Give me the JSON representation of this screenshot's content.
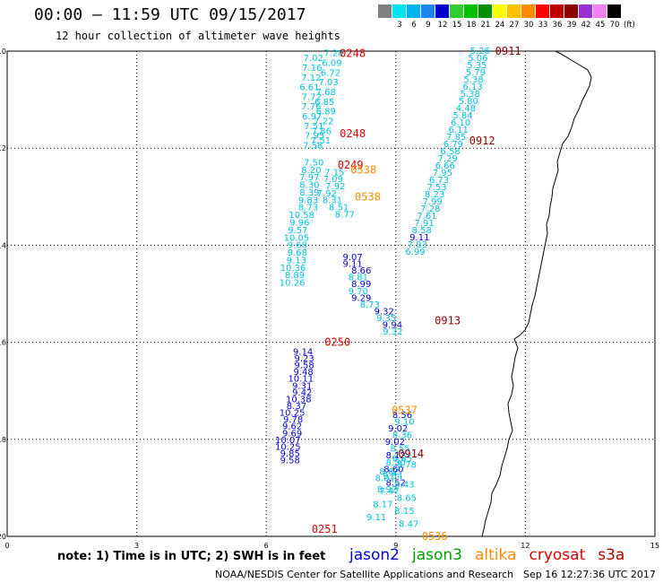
{
  "header": {
    "title": "00:00 – 11:59 UTC 09/15/2017",
    "subtitle": "12 hour collection of altimeter wave heights"
  },
  "colorbar": {
    "unit": "(ft)",
    "steps": [
      {
        "label": "",
        "color": "#808080"
      },
      {
        "label": "3",
        "color": "#00e5ee"
      },
      {
        "label": "6",
        "color": "#00b2ee"
      },
      {
        "label": "9",
        "color": "#1c86ee"
      },
      {
        "label": "12",
        "color": "#0000cd"
      },
      {
        "label": "15",
        "color": "#32cd32"
      },
      {
        "label": "18",
        "color": "#00c000"
      },
      {
        "label": "21",
        "color": "#009000"
      },
      {
        "label": "24",
        "color": "#ffff00"
      },
      {
        "label": "27",
        "color": "#ffc000"
      },
      {
        "label": "30",
        "color": "#ff8c00"
      },
      {
        "label": "33",
        "color": "#ff0000"
      },
      {
        "label": "36",
        "color": "#c00000"
      },
      {
        "label": "39",
        "color": "#8b0000"
      },
      {
        "label": "42",
        "color": "#9a30d0"
      },
      {
        "label": "45",
        "color": "#ee82ee"
      },
      {
        "label": "70",
        "color": "#000000"
      }
    ]
  },
  "map": {
    "lat_ticks": [
      "-10",
      "-12",
      "-14",
      "-16",
      "-18",
      "-20"
    ],
    "lon_ticks": [
      "0",
      "3",
      "6",
      "9",
      "12",
      "15"
    ]
  },
  "footer": {
    "note": "note: 1) Time is in UTC; 2) SWH is in feet",
    "credit": "NOAA/NESDIS Center for Satellite Applications and Research",
    "stamp": "Sep 16 12:27:36 UTC 2017"
  },
  "legend": [
    {
      "name": "jason2",
      "color": "#0000cd"
    },
    {
      "name": "jason3",
      "color": "#00a000"
    },
    {
      "name": "altika",
      "color": "#ff8c00"
    },
    {
      "name": "cryosat",
      "color": "#e00000"
    },
    {
      "name": "s3a",
      "color": "#b00000"
    }
  ],
  "colors": {
    "cyan": "#00c0e0",
    "blue": "#0000cd",
    "time_red": "#e00000",
    "time_dark": "#8b0000",
    "time_orange": "#ff8c00"
  },
  "chart_data": {
    "type": "map",
    "region": {
      "lon_range": [
        0,
        15
      ],
      "lat_range": [
        -20,
        -10
      ]
    },
    "grid": "dotted",
    "time_labels": [
      {
        "text": "0248",
        "lon": 8.0,
        "lat": -10.05,
        "color": "#e00000"
      },
      {
        "text": "0248",
        "lon": 8.0,
        "lat": -11.7,
        "color": "#e00000"
      },
      {
        "text": "0249",
        "lon": 7.95,
        "lat": -12.35,
        "color": "#e00000"
      },
      {
        "text": "0538",
        "lon": 8.25,
        "lat": -12.45,
        "color": "#ff8c00"
      },
      {
        "text": "0538",
        "lon": 8.35,
        "lat": -13.0,
        "color": "#ff8c00"
      },
      {
        "text": "0250",
        "lon": 7.65,
        "lat": -16.0,
        "color": "#e00000"
      },
      {
        "text": "0537",
        "lon": 9.2,
        "lat": -17.4,
        "color": "#ff8c00"
      },
      {
        "text": "0251",
        "lon": 7.35,
        "lat": -19.85,
        "color": "#e00000"
      },
      {
        "text": "0536",
        "lon": 9.9,
        "lat": -20.0,
        "color": "#ff8c00"
      },
      {
        "text": "0911",
        "lon": 11.6,
        "lat": -10.0,
        "color": "#8b0000"
      },
      {
        "text": "0912",
        "lon": 11.0,
        "lat": -11.85,
        "color": "#8b0000"
      },
      {
        "text": "0913",
        "lon": 10.2,
        "lat": -15.55,
        "color": "#8b0000"
      },
      {
        "text": "0914",
        "lon": 9.35,
        "lat": -18.3,
        "color": "#8b0000"
      }
    ],
    "tracks": [
      {
        "name": "track-0248",
        "color": "cyan",
        "lat_start": -10.05,
        "lat_step": 0.1,
        "points": [
          {
            "v": "7.28",
            "lon": 7.56
          },
          {
            "v": "7.02",
            "lon": 7.09
          },
          {
            "v": "6.09",
            "lon": 7.52
          },
          {
            "v": "7.16",
            "lon": 7.06
          },
          {
            "v": "6.72",
            "lon": 7.49
          },
          {
            "v": "7.12",
            "lon": 7.04
          },
          {
            "v": "7.03",
            "lon": 7.44
          },
          {
            "v": "6.61",
            "lon": 7.0
          },
          {
            "v": "7.68",
            "lon": 7.38
          },
          {
            "v": "7.72",
            "lon": 7.05
          },
          {
            "v": "6.85",
            "lon": 7.35
          },
          {
            "v": "7.76",
            "lon": 7.04
          },
          {
            "v": "6.89",
            "lon": 7.38
          },
          {
            "v": "6.97",
            "lon": 7.06
          },
          {
            "v": "7.22",
            "lon": 7.33
          },
          {
            "v": "7.51",
            "lon": 7.1
          },
          {
            "v": "7.86",
            "lon": 7.28
          },
          {
            "v": "7.95",
            "lon": 7.12
          },
          {
            "v": "7.51",
            "lon": 7.26
          },
          {
            "v": "7.58",
            "lon": 7.08
          }
        ]
      },
      {
        "name": "track-0249-left",
        "color": "cyan",
        "lat_start": -12.3,
        "lat_step": 0.155,
        "points": [
          {
            "v": "7.50",
            "lon": 7.1
          },
          {
            "v": "8.20",
            "lon": 7.04
          },
          {
            "v": "7.97",
            "lon": 7.0
          },
          {
            "v": "8.30",
            "lon": 7.0
          },
          {
            "v": "8.39",
            "lon": 7.0
          },
          {
            "v": "9.83",
            "lon": 6.97
          },
          {
            "v": "8.73",
            "lon": 6.97
          },
          {
            "v": "10.58",
            "lon": 6.82
          },
          {
            "v": "9.96",
            "lon": 6.77
          },
          {
            "v": "9.57",
            "lon": 6.73
          },
          {
            "v": "10.05",
            "lon": 6.7
          },
          {
            "v": "9.68",
            "lon": 6.72
          },
          {
            "v": "9.68",
            "lon": 6.72
          },
          {
            "v": "9.13",
            "lon": 6.7
          },
          {
            "v": "10.36",
            "lon": 6.62
          },
          {
            "v": "8.89",
            "lon": 6.66
          },
          {
            "v": "10.26",
            "lon": 6.6
          }
        ]
      },
      {
        "name": "track-0249-right",
        "color": "cyan",
        "lat_start": -12.5,
        "lat_step": 0.145,
        "points": [
          {
            "v": "7.15",
            "lon": 7.58
          },
          {
            "v": "7.09",
            "lon": 7.55
          },
          {
            "v": "7.92",
            "lon": 7.6
          },
          {
            "v": "7.92",
            "lon": 7.4
          },
          {
            "v": "8.31",
            "lon": 7.53
          },
          {
            "v": "8.51",
            "lon": 7.68
          },
          {
            "v": "8.77",
            "lon": 7.82
          }
        ]
      },
      {
        "name": "track-0250",
        "color": "blue",
        "lat_start": -14.25,
        "lat_step": 0.14,
        "points": [
          {
            "v": "9.07",
            "lon": 8.0
          },
          {
            "v": "9.11",
            "lon": 8.0
          },
          {
            "v": "8.66",
            "lon": 8.2
          },
          {
            "v": "8.81",
            "lon": 8.13
          },
          {
            "v": "8.99",
            "lon": 8.2
          },
          {
            "v": "9.70",
            "lon": 8.13
          },
          {
            "v": "9.29",
            "lon": 8.2
          },
          {
            "v": "8.73",
            "lon": 8.4
          },
          {
            "v": "9.32",
            "lon": 8.73
          },
          {
            "v": "9.35",
            "lon": 8.78
          },
          {
            "v": "9.94",
            "lon": 8.92
          },
          {
            "v": "9.32",
            "lon": 8.93
          }
        ],
        "cyan_after": 2
      },
      {
        "name": "track-0251",
        "color": "blue",
        "lat_start": -16.2,
        "lat_step": 0.14,
        "points": [
          {
            "v": "9.14",
            "lon": 6.85
          },
          {
            "v": "9.23",
            "lon": 6.88
          },
          {
            "v": "9.58",
            "lon": 6.88
          },
          {
            "v": "9.48",
            "lon": 6.86
          },
          {
            "v": "10.11",
            "lon": 6.8
          },
          {
            "v": "9.31",
            "lon": 6.83
          },
          {
            "v": "9.42",
            "lon": 6.83
          },
          {
            "v": "10.38",
            "lon": 6.75
          },
          {
            "v": "8.37",
            "lon": 6.7
          },
          {
            "v": "10.25",
            "lon": 6.6
          },
          {
            "v": "9.78",
            "lon": 6.62
          },
          {
            "v": "9.62",
            "lon": 6.6
          },
          {
            "v": "9.69",
            "lon": 6.6
          },
          {
            "v": "10.07",
            "lon": 6.5
          },
          {
            "v": "10.25",
            "lon": 6.5
          },
          {
            "v": "9.85",
            "lon": 6.55
          },
          {
            "v": "9.58",
            "lon": 6.55
          }
        ]
      },
      {
        "name": "track-0537",
        "color": "blue",
        "lat_start": -17.5,
        "lat_step": 0.14,
        "points": [
          {
            "v": "8.56",
            "lon": 9.15
          },
          {
            "v": "9.10",
            "lon": 9.2
          },
          {
            "v": "9.02",
            "lon": 9.05
          },
          {
            "v": "8.36",
            "lon": 9.15
          },
          {
            "v": "9.02",
            "lon": 8.98
          },
          {
            "v": "8.55",
            "lon": 9.1
          },
          {
            "v": "8.12",
            "lon": 9.0
          },
          {
            "v": "8.30",
            "lon": 9.0
          },
          {
            "v": "8.60",
            "lon": 8.95
          },
          {
            "v": "9.54",
            "lon": 8.93
          },
          {
            "v": "8.52",
            "lon": 9.0
          },
          {
            "v": "8.92",
            "lon": 8.8
          }
        ],
        "cyan_after": 0
      },
      {
        "name": "track-0536",
        "color": "cyan",
        "lat_start": -18.4,
        "lat_step": 0.135,
        "points": [
          {
            "v": "8.85",
            "lon": 9.15
          },
          {
            "v": "8.78",
            "lon": 9.25
          },
          {
            "v": "8.62",
            "lon": 8.85
          },
          {
            "v": "8.01",
            "lon": 8.75
          },
          {
            "v": "8.43",
            "lon": 9.2
          },
          {
            "v": "7.47",
            "lon": 8.85
          },
          {
            "v": "8.65",
            "lon": 9.25
          },
          {
            "v": "8.17",
            "lon": 8.7
          },
          {
            "v": "8.15",
            "lon": 9.2
          },
          {
            "v": "9.11",
            "lon": 8.55
          },
          {
            "v": "8.47",
            "lon": 9.3
          }
        ]
      },
      {
        "name": "track-0911",
        "color": "cyan",
        "lat_start": -10.0,
        "lat_step": 0.148,
        "points": [
          {
            "v": "5.26",
            "lon": 10.95
          },
          {
            "v": "5.06",
            "lon": 10.9
          },
          {
            "v": "5.35",
            "lon": 10.88
          },
          {
            "v": "5.79",
            "lon": 10.85
          },
          {
            "v": "5.38",
            "lon": 10.8
          },
          {
            "v": "6.13",
            "lon": 10.78
          },
          {
            "v": "5.38",
            "lon": 10.72
          },
          {
            "v": "5.80",
            "lon": 10.68
          },
          {
            "v": "4.48",
            "lon": 10.62
          },
          {
            "v": "5.84",
            "lon": 10.55
          },
          {
            "v": "6.10",
            "lon": 10.5
          },
          {
            "v": "6.11",
            "lon": 10.45
          },
          {
            "v": "7.85",
            "lon": 10.4
          },
          {
            "v": "6.79",
            "lon": 10.33
          },
          {
            "v": "6.58",
            "lon": 10.26
          },
          {
            "v": "7.29",
            "lon": 10.2
          },
          {
            "v": "6.66",
            "lon": 10.14
          },
          {
            "v": "7.95",
            "lon": 10.08
          },
          {
            "v": "6.73",
            "lon": 10.0
          },
          {
            "v": "7.53",
            "lon": 9.95
          },
          {
            "v": "8.23",
            "lon": 9.9
          },
          {
            "v": "7.99",
            "lon": 9.85
          },
          {
            "v": "7.28",
            "lon": 9.8
          },
          {
            "v": "7.61",
            "lon": 9.72
          },
          {
            "v": "7.91",
            "lon": 9.66
          },
          {
            "v": "8.58",
            "lon": 9.6
          },
          {
            "v": "9.11",
            "lon": 9.55
          },
          {
            "v": "7.83",
            "lon": 9.5
          },
          {
            "v": "6.99",
            "lon": 9.45
          }
        ],
        "blue_index": 26
      }
    ]
  }
}
